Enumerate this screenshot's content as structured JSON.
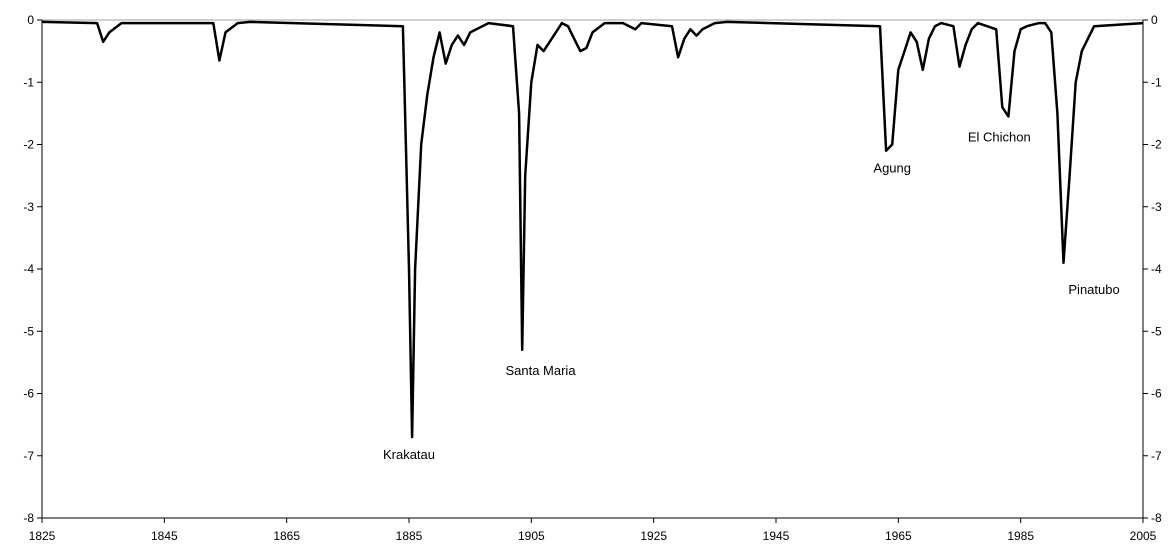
{
  "chart_data": {
    "type": "line",
    "title": "",
    "xlabel": "",
    "ylabel": "",
    "xlim": [
      1825,
      2005
    ],
    "ylim": [
      -8,
      0
    ],
    "x_ticks": [
      1825,
      1845,
      1865,
      1885,
      1905,
      1925,
      1945,
      1965,
      1985,
      2005
    ],
    "y_ticks": [
      0,
      -1,
      -2,
      -3,
      -4,
      -5,
      -6,
      -7,
      -8
    ],
    "y_axis_right": true,
    "grid": false,
    "line_color": "#000000",
    "zero_line_color": "#a0a0a0",
    "series": [
      {
        "x": [
          1825,
          1834,
          1835,
          1836,
          1838,
          1853,
          1854,
          1855,
          1857,
          1859,
          1884,
          1885,
          1885.5,
          1886,
          1887,
          1888,
          1889,
          1890,
          1891,
          1892,
          1893,
          1894,
          1895,
          1897,
          1898,
          1902,
          1903,
          1903.5,
          1904,
          1905,
          1906,
          1907,
          1908,
          1909,
          1910,
          1911,
          1912,
          1913,
          1914,
          1915,
          1917,
          1920,
          1921,
          1922,
          1923,
          1928,
          1929,
          1930,
          1931,
          1932,
          1933,
          1935,
          1937,
          1962,
          1963,
          1964,
          1965,
          1966,
          1967,
          1968,
          1969,
          1970,
          1971,
          1972,
          1974,
          1975,
          1976,
          1977,
          1978,
          1981,
          1982,
          1983,
          1984,
          1985,
          1986,
          1988,
          1989,
          1990,
          1991,
          1992,
          1993,
          1994,
          1995,
          1997,
          2005
        ],
        "y": [
          -0.03,
          -0.05,
          -0.35,
          -0.2,
          -0.05,
          -0.05,
          -0.65,
          -0.2,
          -0.05,
          -0.03,
          -0.1,
          -4.0,
          -6.7,
          -4.0,
          -2.0,
          -1.2,
          -0.6,
          -0.2,
          -0.7,
          -0.4,
          -0.25,
          -0.4,
          -0.2,
          -0.1,
          -0.05,
          -0.1,
          -1.5,
          -5.3,
          -2.5,
          -1.0,
          -0.4,
          -0.5,
          -0.35,
          -0.2,
          -0.05,
          -0.1,
          -0.3,
          -0.5,
          -0.45,
          -0.2,
          -0.05,
          -0.05,
          -0.1,
          -0.15,
          -0.05,
          -0.1,
          -0.6,
          -0.3,
          -0.15,
          -0.25,
          -0.15,
          -0.05,
          -0.03,
          -0.1,
          -2.1,
          -2.0,
          -0.8,
          -0.5,
          -0.2,
          -0.35,
          -0.8,
          -0.3,
          -0.1,
          -0.05,
          -0.1,
          -0.75,
          -0.4,
          -0.15,
          -0.05,
          -0.15,
          -1.4,
          -1.55,
          -0.5,
          -0.15,
          -0.1,
          -0.05,
          -0.05,
          -0.2,
          -1.5,
          -3.9,
          -2.5,
          -1.0,
          -0.5,
          -0.1,
          -0.05
        ]
      }
    ],
    "annotations": [
      {
        "text": "Krakatau",
        "x": 1885,
        "y": -7.05,
        "anchor": "middle"
      },
      {
        "text": "Santa Maria",
        "x": 1906.5,
        "y": -5.7,
        "anchor": "middle"
      },
      {
        "text": "Agung",
        "x": 1964,
        "y": -2.45,
        "anchor": "middle"
      },
      {
        "text": "El Chichon",
        "x": 1981.5,
        "y": -1.95,
        "anchor": "middle"
      },
      {
        "text": "Pinatubo",
        "x": 1997,
        "y": -4.4,
        "anchor": "middle"
      }
    ]
  }
}
